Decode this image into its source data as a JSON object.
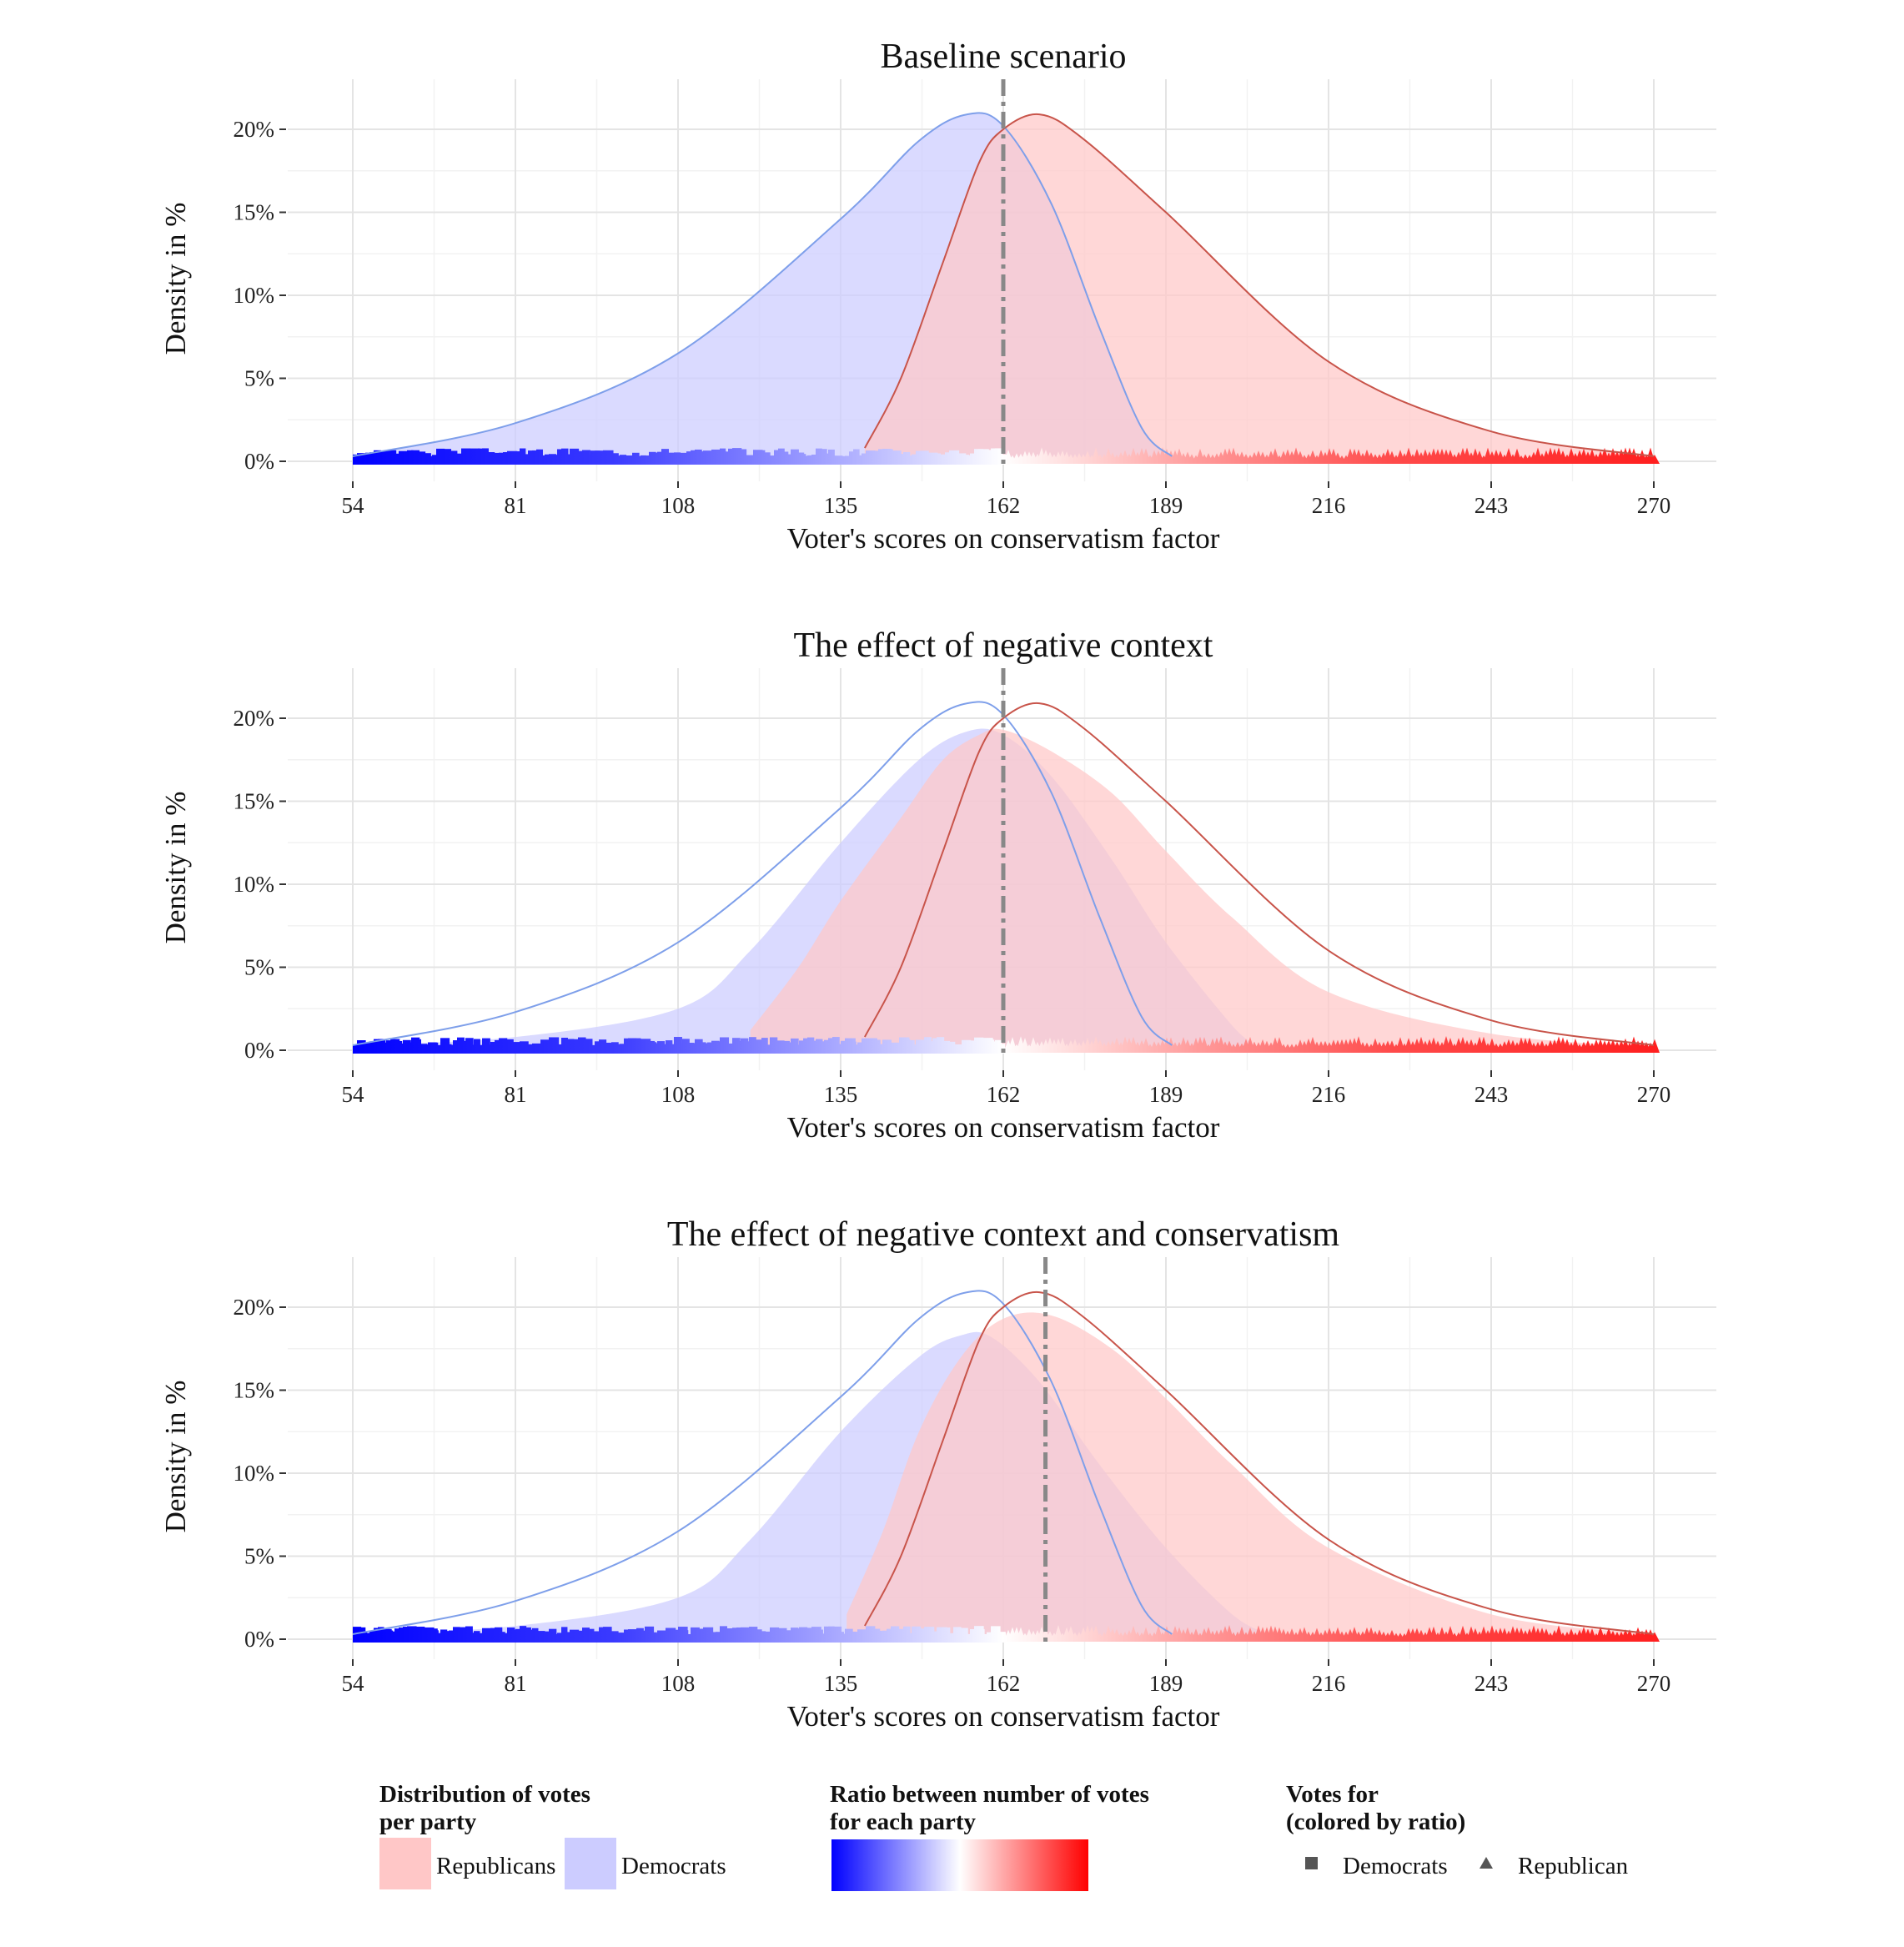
{
  "chart_data": [
    {
      "type": "area",
      "title": "Baseline scenario",
      "xlabel": "Voter's scores on conservatism factor",
      "ylabel": "Density in %",
      "x_ticks": [
        "54",
        "81",
        "108",
        "135",
        "162",
        "189",
        "216",
        "243",
        "270"
      ],
      "y_ticks": [
        "0%",
        "5%",
        "10%",
        "15%",
        "20%"
      ],
      "xlim": [
        54,
        270
      ],
      "ylim": [
        0,
        20
      ],
      "grid": true,
      "cutoff_line": 162,
      "reference_curves": {
        "democrats": {
          "x": [
            54,
            81,
            108,
            135,
            148,
            156,
            162,
            170,
            178,
            185,
            190
          ],
          "y": [
            0.3,
            2.3,
            6.5,
            14.6,
            19.3,
            20.9,
            20.2,
            15.5,
            8.0,
            2.0,
            0.3
          ]
        },
        "republicans": {
          "x": [
            139,
            145,
            152,
            158,
            162,
            168,
            175,
            189,
            216,
            243,
            270
          ],
          "y": [
            0.8,
            5.0,
            12.0,
            18.0,
            20.0,
            20.9,
            19.5,
            15.0,
            6.0,
            1.8,
            0.3
          ]
        }
      },
      "series": [
        {
          "name": "Democrats",
          "x": [
            54,
            81,
            108,
            135,
            148,
            156,
            162,
            170,
            178,
            185,
            190
          ],
          "y": [
            0.3,
            2.3,
            6.5,
            14.6,
            19.3,
            20.9,
            20.2,
            15.5,
            8.0,
            2.0,
            0.3
          ]
        },
        {
          "name": "Republicans",
          "x": [
            139,
            145,
            152,
            158,
            162,
            168,
            175,
            189,
            216,
            243,
            270
          ],
          "y": [
            0.8,
            5.0,
            12.0,
            18.0,
            20.0,
            20.9,
            19.5,
            15.0,
            6.0,
            1.8,
            0.3
          ]
        }
      ]
    },
    {
      "type": "area",
      "title": "The effect of negative context",
      "xlabel": "Voter's scores on conservatism factor",
      "ylabel": "Density in %",
      "x_ticks": [
        "54",
        "81",
        "108",
        "135",
        "162",
        "189",
        "216",
        "243",
        "270"
      ],
      "y_ticks": [
        "0%",
        "5%",
        "10%",
        "15%",
        "20%"
      ],
      "xlim": [
        54,
        270
      ],
      "ylim": [
        0,
        20
      ],
      "grid": true,
      "cutoff_line": 162,
      "reference_curves": {
        "democrats": {
          "x": [
            54,
            81,
            108,
            135,
            148,
            156,
            162,
            170,
            178,
            185,
            190
          ],
          "y": [
            0.3,
            2.3,
            6.5,
            14.6,
            19.3,
            20.9,
            20.2,
            15.5,
            8.0,
            2.0,
            0.3
          ]
        },
        "republicans": {
          "x": [
            139,
            145,
            152,
            158,
            162,
            168,
            175,
            189,
            216,
            243,
            270
          ],
          "y": [
            0.8,
            5.0,
            12.0,
            18.0,
            20.0,
            20.9,
            19.5,
            15.0,
            6.0,
            1.8,
            0.3
          ]
        }
      },
      "series": [
        {
          "name": "Democrats",
          "x": [
            54,
            81,
            108,
            120,
            135,
            148,
            156,
            162,
            170,
            180,
            189,
            200,
            204
          ],
          "y": [
            0.3,
            0.8,
            2.5,
            6.0,
            12.5,
            17.5,
            19.2,
            19.0,
            16.5,
            11.5,
            6.5,
            1.5,
            0.3
          ]
        },
        {
          "name": "Republicans",
          "x": [
            120,
            128,
            135,
            145,
            152,
            158,
            162,
            170,
            180,
            189,
            200,
            216,
            243,
            270
          ],
          "y": [
            1.2,
            5.0,
            9.0,
            14.0,
            17.5,
            19.0,
            19.3,
            18.0,
            15.5,
            12.0,
            8.0,
            3.5,
            1.0,
            0.2
          ]
        }
      ]
    },
    {
      "type": "area",
      "title": "The effect of negative context and conservatism",
      "xlabel": "Voter's scores on conservatism factor",
      "ylabel": "Density in %",
      "x_ticks": [
        "54",
        "81",
        "108",
        "135",
        "162",
        "189",
        "216",
        "243",
        "270"
      ],
      "y_ticks": [
        "0%",
        "5%",
        "10%",
        "15%",
        "20%"
      ],
      "xlim": [
        54,
        270
      ],
      "ylim": [
        0,
        20
      ],
      "grid": true,
      "cutoff_line": 169,
      "reference_curves": {
        "democrats": {
          "x": [
            54,
            81,
            108,
            135,
            148,
            156,
            162,
            170,
            178,
            185,
            190
          ],
          "y": [
            0.3,
            2.3,
            6.5,
            14.6,
            19.3,
            20.9,
            20.2,
            15.5,
            8.0,
            2.0,
            0.3
          ]
        },
        "republicans": {
          "x": [
            139,
            145,
            152,
            158,
            162,
            168,
            175,
            189,
            216,
            243,
            270
          ],
          "y": [
            0.8,
            5.0,
            12.0,
            18.0,
            20.0,
            20.9,
            19.5,
            15.0,
            6.0,
            1.8,
            0.3
          ]
        }
      },
      "series": [
        {
          "name": "Democrats",
          "x": [
            54,
            81,
            108,
            120,
            135,
            148,
            155,
            160,
            168,
            178,
            189,
            200,
            206
          ],
          "y": [
            0.3,
            0.8,
            2.5,
            6.0,
            12.5,
            17.0,
            18.3,
            18.2,
            15.5,
            10.5,
            5.5,
            1.5,
            0.3
          ]
        },
        {
          "name": "Republicans",
          "x": [
            136,
            142,
            148,
            155,
            162,
            170,
            180,
            189,
            200,
            216,
            243,
            270
          ],
          "y": [
            1.5,
            6.5,
            12.5,
            17.0,
            19.3,
            19.5,
            17.5,
            14.5,
            10.5,
            5.5,
            1.5,
            0.3
          ]
        }
      ]
    }
  ],
  "legend": {
    "distribution_title_line1": "Distribution of votes",
    "distribution_title_line2": "per party",
    "republicans_label": "Republicans",
    "democrats_label": "Democrats",
    "ratio_title_line1": "Ratio between number of votes",
    "ratio_title_line2": "for each party",
    "votes_title_line1": "Votes for",
    "votes_title_line2": "(colored by ratio)",
    "votes_democrats_label": "Democrats",
    "votes_republican_label": "Republican"
  },
  "colors": {
    "democrats_fill": "#ccccff",
    "republicans_fill": "#ffc7c7",
    "democrats_line": "#7e9fea",
    "republicans_line": "#c8544a",
    "ratio_low": "#0000ff",
    "ratio_mid": "#ffffff",
    "ratio_high": "#ff0000",
    "cutoff": "#888888",
    "grid_major": "#e4e4e4",
    "grid_minor": "#f2f2f2"
  }
}
